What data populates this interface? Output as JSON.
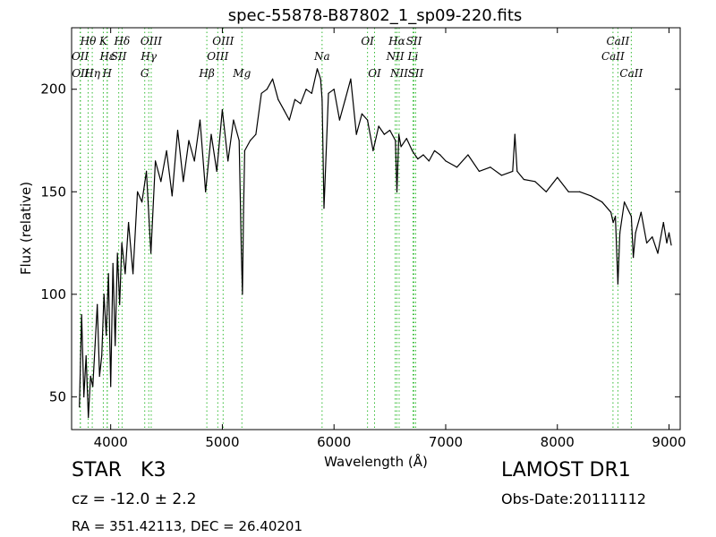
{
  "chart_data": {
    "type": "line",
    "title": "spec-55878-B87802_1_sp09-220.fits",
    "xlabel": "Wavelength (Å)",
    "ylabel": "Flux (relative)",
    "xlim": [
      3650,
      9100
    ],
    "ylim": [
      34,
      230
    ],
    "xticks": [
      4000,
      5000,
      6000,
      7000,
      8000,
      9000
    ],
    "yticks": [
      50,
      100,
      150,
      200
    ],
    "grid": false,
    "line_color": "#000000",
    "marker_color": "#33bb33",
    "series": [
      {
        "x": [
          3720,
          3740,
          3760,
          3780,
          3800,
          3820,
          3840,
          3860,
          3880,
          3900,
          3920,
          3940,
          3960,
          3980,
          4000,
          4020,
          4040,
          4060,
          4080,
          4100,
          4130,
          4160,
          4200,
          4240,
          4280,
          4320,
          4360,
          4400,
          4450,
          4500,
          4550,
          4600,
          4650,
          4700,
          4750,
          4800,
          4850,
          4900,
          4950,
          5000,
          5050,
          5100,
          5150,
          5170,
          5180,
          5190,
          5200,
          5250,
          5300,
          5350,
          5400,
          5450,
          5500,
          5550,
          5600,
          5650,
          5700,
          5750,
          5800,
          5850,
          5880,
          5893,
          5910,
          5950,
          6000,
          6050,
          6100,
          6150,
          6200,
          6250,
          6300,
          6350,
          6400,
          6450,
          6500,
          6550,
          6563,
          6580,
          6600,
          6650,
          6700,
          6750,
          6800,
          6850,
          6900,
          6950,
          7000,
          7100,
          7200,
          7300,
          7400,
          7500,
          7600,
          7620,
          7640,
          7700,
          7800,
          7900,
          8000,
          8100,
          8200,
          8300,
          8400,
          8480,
          8500,
          8520,
          8542,
          8560,
          8600,
          8662,
          8680,
          8700,
          8750,
          8800,
          8850,
          8900,
          8950,
          8980,
          9000,
          9020
        ],
        "y": [
          45,
          90,
          50,
          70,
          40,
          60,
          55,
          75,
          95,
          60,
          70,
          100,
          80,
          110,
          55,
          115,
          75,
          120,
          95,
          125,
          110,
          135,
          110,
          150,
          145,
          160,
          120,
          165,
          155,
          170,
          148,
          180,
          155,
          175,
          165,
          185,
          150,
          178,
          160,
          190,
          165,
          185,
          175,
          120,
          100,
          140,
          170,
          175,
          178,
          198,
          200,
          205,
          195,
          190,
          185,
          195,
          193,
          200,
          198,
          210,
          205,
          195,
          142,
          198,
          200,
          185,
          195,
          205,
          178,
          188,
          185,
          170,
          182,
          178,
          180,
          175,
          150,
          178,
          172,
          176,
          170,
          166,
          168,
          165,
          170,
          168,
          165,
          162,
          168,
          160,
          162,
          158,
          160,
          178,
          160,
          156,
          155,
          150,
          157,
          150,
          150,
          148,
          145,
          140,
          135,
          138,
          105,
          130,
          145,
          138,
          118,
          130,
          140,
          125,
          128,
          120,
          135,
          125,
          130,
          124
        ]
      }
    ],
    "spectral_lines": [
      {
        "label": "Hθ",
        "x": 3798,
        "row": 0
      },
      {
        "label": "OII",
        "x": 3727,
        "row": 1
      },
      {
        "label": "OII",
        "x": 3729,
        "row": 2
      },
      {
        "label": "Hη",
        "x": 3835,
        "row": 2
      },
      {
        "label": "K",
        "x": 3934,
        "row": 0
      },
      {
        "label": "Hε",
        "x": 3970,
        "row": 1
      },
      {
        "label": "SII",
        "x": 4072,
        "row": 1
      },
      {
        "label": "H",
        "x": 3968,
        "row": 2
      },
      {
        "label": "Hδ",
        "x": 4102,
        "row": 0
      },
      {
        "label": "OIII",
        "x": 4363,
        "row": 0
      },
      {
        "label": "Hγ",
        "x": 4341,
        "row": 1
      },
      {
        "label": "G",
        "x": 4305,
        "row": 2
      },
      {
        "label": "OIII",
        "x": 5007,
        "row": 0
      },
      {
        "label": "OIII",
        "x": 4959,
        "row": 1
      },
      {
        "label": "Hβ",
        "x": 4861,
        "row": 2
      },
      {
        "label": "Mg",
        "x": 5175,
        "row": 2
      },
      {
        "label": "Na",
        "x": 5893,
        "row": 1
      },
      {
        "label": "OI",
        "x": 6300,
        "row": 0
      },
      {
        "label": "OI",
        "x": 6363,
        "row": 2
      },
      {
        "label": "Hα",
        "x": 6563,
        "row": 0
      },
      {
        "label": "NII",
        "x": 6548,
        "row": 1
      },
      {
        "label": "NII",
        "x": 6583,
        "row": 2
      },
      {
        "label": "SII",
        "x": 6716,
        "row": 0
      },
      {
        "label": "Li",
        "x": 6707,
        "row": 1
      },
      {
        "label": "SII",
        "x": 6731,
        "row": 2
      },
      {
        "label": "CaII",
        "x": 8542,
        "row": 0
      },
      {
        "label": "CaII",
        "x": 8498,
        "row": 1
      },
      {
        "label": "CaII",
        "x": 8662,
        "row": 2
      }
    ]
  },
  "info": {
    "object_class": "STAR   K3",
    "cz": "cz = -12.0 ± 2.2",
    "radec": "RA = 351.42113, DEC = 26.40201",
    "survey": "LAMOST DR1",
    "obs_date": "Obs-Date:20111112"
  }
}
